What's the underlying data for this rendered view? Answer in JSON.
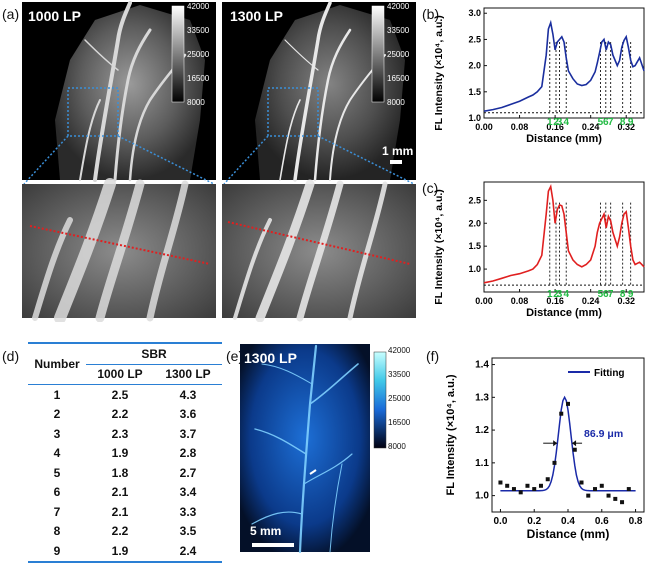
{
  "panel_labels": {
    "a": "(a)",
    "b": "(b)",
    "c": "(c)",
    "d": "(d)",
    "e": "(e)",
    "f": "(f)"
  },
  "panel_a": {
    "left_title": "1000 LP",
    "right_title": "1300 LP",
    "colorbar_ticks": [
      "42000",
      "33500",
      "25000",
      "16500",
      "8000"
    ],
    "scale_label": "1 mm"
  },
  "panel_e": {
    "title": "1300 LP",
    "colorbar_ticks": [
      "42000",
      "33500",
      "25000",
      "16500",
      "8000"
    ],
    "scale_label": "5 mm"
  },
  "table": {
    "header_number": "Number",
    "header_group": "SBR",
    "header_cols": [
      "1000 LP",
      "1300 LP"
    ],
    "rows": [
      [
        "1",
        "2.5",
        "4.3"
      ],
      [
        "2",
        "2.2",
        "3.6"
      ],
      [
        "3",
        "2.3",
        "3.7"
      ],
      [
        "4",
        "1.9",
        "2.8"
      ],
      [
        "5",
        "1.8",
        "2.7"
      ],
      [
        "6",
        "2.1",
        "3.4"
      ],
      [
        "7",
        "2.1",
        "3.3"
      ],
      [
        "8",
        "2.2",
        "3.5"
      ],
      [
        "9",
        "1.9",
        "2.4"
      ]
    ]
  },
  "colors": {
    "blue_curve": "#1a2e9e",
    "red_curve": "#e02020",
    "peak_labels": "#22bb44",
    "table_rule": "#2a7fd4",
    "fit": "#1a2aa8"
  },
  "chart_data": [
    {
      "id": "b",
      "type": "line",
      "xlabel": "Distance (mm)",
      "ylabel": "FL Intensity (×10⁴, a.u.)",
      "xlim": [
        0,
        0.36
      ],
      "ylim": [
        1.0,
        3.1
      ],
      "xticks": [
        "0.00",
        "0.08",
        "0.16",
        "0.24",
        "0.32"
      ],
      "yticks": [
        "1.0",
        "1.5",
        "2.0",
        "2.5",
        "3.0"
      ],
      "baseline": 1.1,
      "peak_labels": [
        "1",
        "2",
        "3",
        "4",
        "5",
        "6",
        "7",
        "8",
        "9"
      ],
      "peak_x": [
        0.148,
        0.162,
        0.17,
        0.185,
        0.262,
        0.274,
        0.285,
        0.312,
        0.33
      ],
      "x": [
        0,
        0.02,
        0.04,
        0.06,
        0.08,
        0.1,
        0.11,
        0.12,
        0.13,
        0.14,
        0.145,
        0.15,
        0.155,
        0.16,
        0.165,
        0.17,
        0.175,
        0.18,
        0.185,
        0.19,
        0.2,
        0.21,
        0.22,
        0.23,
        0.24,
        0.25,
        0.255,
        0.26,
        0.265,
        0.27,
        0.275,
        0.28,
        0.285,
        0.29,
        0.3,
        0.305,
        0.31,
        0.315,
        0.32,
        0.325,
        0.33,
        0.335,
        0.34,
        0.35,
        0.36
      ],
      "y": [
        1.13,
        1.16,
        1.2,
        1.26,
        1.32,
        1.4,
        1.44,
        1.5,
        1.6,
        2.2,
        2.7,
        2.82,
        2.6,
        2.3,
        2.45,
        2.5,
        2.55,
        2.45,
        2.15,
        1.9,
        1.75,
        1.65,
        1.62,
        1.64,
        1.72,
        1.88,
        2.05,
        2.25,
        2.45,
        2.5,
        2.3,
        2.45,
        2.4,
        2.2,
        2.0,
        2.1,
        2.35,
        2.48,
        2.55,
        2.35,
        2.1,
        1.98,
        2.0,
        2.15,
        1.9
      ]
    },
    {
      "id": "c",
      "type": "line",
      "xlabel": "Distance (mm)",
      "ylabel": "FL Intensity (×10⁴, a.u.)",
      "xlim": [
        0,
        0.36
      ],
      "ylim": [
        0.5,
        2.9
      ],
      "xticks": [
        "0.00",
        "0.08",
        "0.16",
        "0.24",
        "0.32"
      ],
      "yticks": [
        "1.0",
        "1.5",
        "2.0",
        "2.5"
      ],
      "baseline": 0.65,
      "peak_labels": [
        "1",
        "2",
        "3",
        "4",
        "5",
        "6",
        "7",
        "8",
        "9"
      ],
      "peak_x": [
        0.148,
        0.162,
        0.17,
        0.185,
        0.262,
        0.274,
        0.285,
        0.312,
        0.33
      ],
      "x": [
        0,
        0.02,
        0.04,
        0.06,
        0.08,
        0.1,
        0.11,
        0.12,
        0.13,
        0.14,
        0.145,
        0.15,
        0.155,
        0.16,
        0.165,
        0.17,
        0.175,
        0.18,
        0.185,
        0.19,
        0.2,
        0.21,
        0.22,
        0.23,
        0.24,
        0.25,
        0.255,
        0.26,
        0.265,
        0.27,
        0.275,
        0.28,
        0.285,
        0.29,
        0.3,
        0.305,
        0.31,
        0.315,
        0.32,
        0.325,
        0.33,
        0.335,
        0.34,
        0.35,
        0.36
      ],
      "y": [
        0.7,
        0.74,
        0.8,
        0.86,
        0.9,
        0.96,
        1.0,
        1.1,
        1.3,
        2.2,
        2.7,
        2.8,
        2.5,
        2.0,
        2.3,
        2.4,
        2.38,
        2.2,
        1.8,
        1.4,
        1.2,
        1.1,
        1.05,
        1.1,
        1.2,
        1.5,
        1.8,
        2.0,
        2.1,
        2.2,
        1.9,
        2.15,
        2.05,
        1.8,
        1.5,
        1.7,
        2.0,
        2.2,
        2.25,
        1.9,
        1.5,
        1.2,
        1.1,
        1.15,
        1.05
      ]
    },
    {
      "id": "f",
      "type": "scatter",
      "xlabel": "Distance (mm)",
      "ylabel": "FL Intensity (×10⁴, a.u.)",
      "xlim": [
        -0.05,
        0.85
      ],
      "ylim": [
        0.95,
        1.42
      ],
      "xticks": [
        "0.0",
        "0.2",
        "0.4",
        "0.6",
        "0.8"
      ],
      "yticks": [
        "1.0",
        "1.1",
        "1.2",
        "1.3",
        "1.4"
      ],
      "legend": "Fitting",
      "annotation": "86.9 μm",
      "x": [
        0,
        0.04,
        0.08,
        0.12,
        0.16,
        0.2,
        0.24,
        0.28,
        0.32,
        0.36,
        0.4,
        0.44,
        0.48,
        0.52,
        0.56,
        0.6,
        0.64,
        0.68,
        0.72,
        0.76
      ],
      "y": [
        1.04,
        1.03,
        1.02,
        1.01,
        1.03,
        1.02,
        1.03,
        1.05,
        1.1,
        1.25,
        1.28,
        1.14,
        1.04,
        1.0,
        1.02,
        1.03,
        1.0,
        0.99,
        0.98,
        1.02
      ],
      "fit_center": 0.38,
      "fit_sigma": 0.037,
      "fit_amp": 0.285,
      "fit_base": 1.015
    }
  ]
}
